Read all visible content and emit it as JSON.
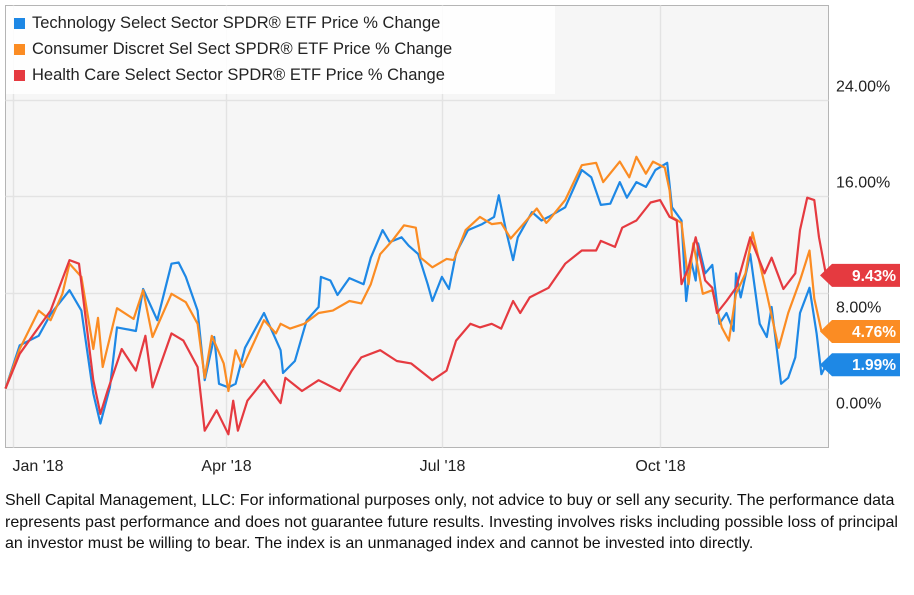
{
  "chart_data": {
    "type": "line",
    "title": "",
    "xlabel": "",
    "ylabel": "",
    "xlim": [
      "2017-12-29",
      "2018-12-11"
    ],
    "ylim": [
      -4.9,
      31.9
    ],
    "grid": true,
    "legend_position": "top-left",
    "y_axis_side": "right",
    "x_ticks": [
      {
        "date": "2018-01-01",
        "label": "Jan '18"
      },
      {
        "date": "2018-04-01",
        "label": "Apr '18"
      },
      {
        "date": "2018-07-01",
        "label": "Jul '18"
      },
      {
        "date": "2018-10-01",
        "label": "Oct '18"
      }
    ],
    "y_ticks": [
      {
        "value": 24,
        "label": "24.00%"
      },
      {
        "value": 16,
        "label": "16.00%"
      },
      {
        "value": 8,
        "label": "8.00%"
      },
      {
        "value": 0,
        "label": "0.00%"
      }
    ],
    "series": [
      {
        "name": "Technology Select Sector SPDR® ETF Price % Change",
        "color": "#1e88e5",
        "last_label": "1.99%",
        "last_value": 1.99,
        "points": [
          [
            "2017-12-29",
            0
          ],
          [
            "2018-01-04",
            3.6
          ],
          [
            "2018-01-12",
            4.4
          ],
          [
            "2018-01-17",
            6.2
          ],
          [
            "2018-01-25",
            8.2
          ],
          [
            "2018-01-30",
            6.5
          ],
          [
            "2018-02-04",
            -0.4
          ],
          [
            "2018-02-07",
            -2.9
          ],
          [
            "2018-02-11",
            0.1
          ],
          [
            "2018-02-14",
            5.1
          ],
          [
            "2018-02-22",
            4.8
          ],
          [
            "2018-02-25",
            8.3
          ],
          [
            "2018-03-03",
            5.7
          ],
          [
            "2018-03-09",
            10.4
          ],
          [
            "2018-03-12",
            10.5
          ],
          [
            "2018-03-15",
            9.3
          ],
          [
            "2018-03-20",
            6.5
          ],
          [
            "2018-03-23",
            0.7
          ],
          [
            "2018-03-27",
            4.3
          ],
          [
            "2018-03-29",
            0.4
          ],
          [
            "2018-04-02",
            0.1
          ],
          [
            "2018-04-05",
            0.4
          ],
          [
            "2018-04-09",
            3.4
          ],
          [
            "2018-04-17",
            6.3
          ],
          [
            "2018-04-24",
            3.2
          ],
          [
            "2018-04-25",
            1.3
          ],
          [
            "2018-04-30",
            2.3
          ],
          [
            "2018-05-05",
            5.7
          ],
          [
            "2018-05-10",
            6.8
          ],
          [
            "2018-05-11",
            9.3
          ],
          [
            "2018-05-15",
            9.0
          ],
          [
            "2018-05-18",
            7.8
          ],
          [
            "2018-05-23",
            9.2
          ],
          [
            "2018-05-29",
            8.7
          ],
          [
            "2018-06-01",
            10.9
          ],
          [
            "2018-06-06",
            13.2
          ],
          [
            "2018-06-09",
            12.2
          ],
          [
            "2018-06-14",
            12.6
          ],
          [
            "2018-06-17",
            11.9
          ],
          [
            "2018-06-21",
            11.2
          ],
          [
            "2018-06-25",
            8.7
          ],
          [
            "2018-06-27",
            7.3
          ],
          [
            "2018-07-01",
            9.3
          ],
          [
            "2018-07-04",
            8.3
          ],
          [
            "2018-07-07",
            11.3
          ],
          [
            "2018-07-12",
            13.2
          ],
          [
            "2018-07-18",
            13.7
          ],
          [
            "2018-07-23",
            14.3
          ],
          [
            "2018-07-25",
            16.1
          ],
          [
            "2018-07-28",
            13.2
          ],
          [
            "2018-07-31",
            10.7
          ],
          [
            "2018-08-02",
            12.6
          ],
          [
            "2018-08-08",
            14.7
          ],
          [
            "2018-08-12",
            14.0
          ],
          [
            "2018-08-15",
            14.3
          ],
          [
            "2018-08-22",
            15.1
          ],
          [
            "2018-08-29",
            18.2
          ],
          [
            "2018-09-02",
            17.6
          ],
          [
            "2018-09-06",
            15.3
          ],
          [
            "2018-09-10",
            15.4
          ],
          [
            "2018-09-14",
            17.2
          ],
          [
            "2018-09-17",
            15.9
          ],
          [
            "2018-09-21",
            17.2
          ],
          [
            "2018-09-25",
            16.8
          ],
          [
            "2018-09-29",
            18.2
          ],
          [
            "2018-10-04",
            18.8
          ],
          [
            "2018-10-06",
            15.1
          ],
          [
            "2018-10-10",
            14.0
          ],
          [
            "2018-10-12",
            7.3
          ],
          [
            "2018-10-14",
            10.7
          ],
          [
            "2018-10-16",
            9.0
          ],
          [
            "2018-10-17",
            12.1
          ],
          [
            "2018-10-20",
            9.6
          ],
          [
            "2018-10-23",
            10.3
          ],
          [
            "2018-10-26",
            5.4
          ],
          [
            "2018-10-29",
            6.3
          ],
          [
            "2018-11-01",
            4.8
          ],
          [
            "2018-11-02",
            9.6
          ],
          [
            "2018-11-04",
            7.6
          ],
          [
            "2018-11-08",
            11.2
          ],
          [
            "2018-11-12",
            5.4
          ],
          [
            "2018-11-15",
            4.3
          ],
          [
            "2018-11-17",
            6.8
          ],
          [
            "2018-11-21",
            0.4
          ],
          [
            "2018-11-24",
            0.9
          ],
          [
            "2018-11-27",
            2.6
          ],
          [
            "2018-11-29",
            6.3
          ],
          [
            "2018-12-03",
            8.4
          ],
          [
            "2018-12-06",
            4.6
          ],
          [
            "2018-12-08",
            1.2
          ],
          [
            "2018-12-10",
            1.99
          ]
        ]
      },
      {
        "name": "Consumer Discret Sel Sect SPDR® ETF Price % Change",
        "color": "#fb8c23",
        "last_label": "4.76%",
        "last_value": 4.76,
        "points": [
          [
            "2017-12-29",
            0
          ],
          [
            "2018-01-04",
            3.3
          ],
          [
            "2018-01-12",
            6.5
          ],
          [
            "2018-01-17",
            5.7
          ],
          [
            "2018-01-22",
            7.9
          ],
          [
            "2018-01-25",
            10.4
          ],
          [
            "2018-01-30",
            9.3
          ],
          [
            "2018-02-04",
            3.3
          ],
          [
            "2018-02-06",
            5.9
          ],
          [
            "2018-02-08",
            1.8
          ],
          [
            "2018-02-14",
            6.7
          ],
          [
            "2018-02-21",
            5.8
          ],
          [
            "2018-02-25",
            8.2
          ],
          [
            "2018-03-01",
            4.3
          ],
          [
            "2018-03-09",
            7.9
          ],
          [
            "2018-03-15",
            7.2
          ],
          [
            "2018-03-20",
            5.4
          ],
          [
            "2018-03-23",
            0.9
          ],
          [
            "2018-03-26",
            4.4
          ],
          [
            "2018-03-31",
            2.1
          ],
          [
            "2018-04-02",
            -0.2
          ],
          [
            "2018-04-05",
            3.2
          ],
          [
            "2018-04-08",
            1.8
          ],
          [
            "2018-04-17",
            5.7
          ],
          [
            "2018-04-22",
            4.6
          ],
          [
            "2018-04-24",
            5.4
          ],
          [
            "2018-04-28",
            5.0
          ],
          [
            "2018-05-04",
            5.4
          ],
          [
            "2018-05-10",
            6.3
          ],
          [
            "2018-05-16",
            6.5
          ],
          [
            "2018-05-23",
            7.3
          ],
          [
            "2018-05-28",
            7.1
          ],
          [
            "2018-06-01",
            8.7
          ],
          [
            "2018-06-05",
            11.2
          ],
          [
            "2018-06-10",
            12.3
          ],
          [
            "2018-06-15",
            13.6
          ],
          [
            "2018-06-20",
            13.4
          ],
          [
            "2018-06-22",
            10.9
          ],
          [
            "2018-06-27",
            10.1
          ],
          [
            "2018-07-03",
            10.8
          ],
          [
            "2018-07-06",
            10.7
          ],
          [
            "2018-07-11",
            13.2
          ],
          [
            "2018-07-17",
            14.3
          ],
          [
            "2018-07-22",
            13.7
          ],
          [
            "2018-07-26",
            13.8
          ],
          [
            "2018-07-30",
            12.5
          ],
          [
            "2018-08-03",
            13.4
          ],
          [
            "2018-08-10",
            15.0
          ],
          [
            "2018-08-14",
            13.8
          ],
          [
            "2018-08-15",
            14.0
          ],
          [
            "2018-08-22",
            15.7
          ],
          [
            "2018-08-29",
            18.6
          ],
          [
            "2018-09-04",
            18.8
          ],
          [
            "2018-09-07",
            17.2
          ],
          [
            "2018-09-14",
            18.9
          ],
          [
            "2018-09-18",
            17.6
          ],
          [
            "2018-09-21",
            19.3
          ],
          [
            "2018-09-25",
            17.9
          ],
          [
            "2018-09-28",
            18.9
          ],
          [
            "2018-10-03",
            18.4
          ],
          [
            "2018-10-05",
            16.5
          ],
          [
            "2018-10-06",
            14.3
          ],
          [
            "2018-10-10",
            13.8
          ],
          [
            "2018-10-13",
            8.7
          ],
          [
            "2018-10-15",
            12.1
          ],
          [
            "2018-10-19",
            7.9
          ],
          [
            "2018-10-23",
            8.2
          ],
          [
            "2018-10-27",
            5.1
          ],
          [
            "2018-10-30",
            4.0
          ],
          [
            "2018-11-02",
            7.9
          ],
          [
            "2018-11-06",
            9.6
          ],
          [
            "2018-11-09",
            13.0
          ],
          [
            "2018-11-15",
            7.9
          ],
          [
            "2018-11-20",
            3.4
          ],
          [
            "2018-11-24",
            6.3
          ],
          [
            "2018-11-29",
            9.0
          ],
          [
            "2018-12-03",
            11.5
          ],
          [
            "2018-12-05",
            7.5
          ],
          [
            "2018-12-08",
            4.8
          ],
          [
            "2018-12-10",
            4.76
          ]
        ]
      },
      {
        "name": "Health Care Select Sector SPDR® ETF Price % Change",
        "color": "#e53a40",
        "last_label": "9.43%",
        "last_value": 9.43,
        "points": [
          [
            "2017-12-29",
            0
          ],
          [
            "2018-01-04",
            2.9
          ],
          [
            "2018-01-17",
            6.5
          ],
          [
            "2018-01-25",
            10.7
          ],
          [
            "2018-01-29",
            10.4
          ],
          [
            "2018-02-04",
            0.7
          ],
          [
            "2018-02-07",
            -2.1
          ],
          [
            "2018-02-10",
            -0.2
          ],
          [
            "2018-02-16",
            3.3
          ],
          [
            "2018-02-22",
            1.5
          ],
          [
            "2018-02-26",
            4.4
          ],
          [
            "2018-03-01",
            0.1
          ],
          [
            "2018-03-09",
            4.6
          ],
          [
            "2018-03-14",
            4.0
          ],
          [
            "2018-03-20",
            1.8
          ],
          [
            "2018-03-23",
            -3.5
          ],
          [
            "2018-03-28",
            -1.8
          ],
          [
            "2018-04-02",
            -3.8
          ],
          [
            "2018-04-04",
            -1.0
          ],
          [
            "2018-04-06",
            -3.5
          ],
          [
            "2018-04-10",
            -1.0
          ],
          [
            "2018-04-17",
            0.7
          ],
          [
            "2018-04-21",
            -0.4
          ],
          [
            "2018-04-24",
            -1.2
          ],
          [
            "2018-04-26",
            0.9
          ],
          [
            "2018-05-03",
            -0.2
          ],
          [
            "2018-05-10",
            0.7
          ],
          [
            "2018-05-19",
            -0.2
          ],
          [
            "2018-05-24",
            1.5
          ],
          [
            "2018-05-28",
            2.6
          ],
          [
            "2018-06-05",
            3.2
          ],
          [
            "2018-06-12",
            2.3
          ],
          [
            "2018-06-18",
            2.1
          ],
          [
            "2018-06-27",
            0.7
          ],
          [
            "2018-07-03",
            1.5
          ],
          [
            "2018-07-07",
            4.0
          ],
          [
            "2018-07-13",
            5.4
          ],
          [
            "2018-07-17",
            5.1
          ],
          [
            "2018-07-22",
            5.4
          ],
          [
            "2018-07-26",
            5.0
          ],
          [
            "2018-07-31",
            7.3
          ],
          [
            "2018-08-03",
            6.3
          ],
          [
            "2018-08-07",
            7.6
          ],
          [
            "2018-08-15",
            8.4
          ],
          [
            "2018-08-22",
            10.4
          ],
          [
            "2018-08-29",
            11.5
          ],
          [
            "2018-09-04",
            11.5
          ],
          [
            "2018-09-06",
            12.3
          ],
          [
            "2018-09-12",
            11.8
          ],
          [
            "2018-09-15",
            13.4
          ],
          [
            "2018-09-21",
            14.0
          ],
          [
            "2018-09-27",
            15.5
          ],
          [
            "2018-10-01",
            15.7
          ],
          [
            "2018-10-05",
            14.3
          ],
          [
            "2018-10-08",
            14.0
          ],
          [
            "2018-10-10",
            8.7
          ],
          [
            "2018-10-13",
            10.1
          ],
          [
            "2018-10-16",
            12.6
          ],
          [
            "2018-10-20",
            9.0
          ],
          [
            "2018-10-23",
            8.4
          ],
          [
            "2018-10-25",
            6.3
          ],
          [
            "2018-10-29",
            7.3
          ],
          [
            "2018-11-02",
            8.4
          ],
          [
            "2018-11-08",
            12.6
          ],
          [
            "2018-11-14",
            9.6
          ],
          [
            "2018-11-17",
            10.9
          ],
          [
            "2018-11-22",
            8.3
          ],
          [
            "2018-11-27",
            9.6
          ],
          [
            "2018-11-29",
            13.2
          ],
          [
            "2018-12-02",
            15.9
          ],
          [
            "2018-12-05",
            15.7
          ],
          [
            "2018-12-07",
            12.6
          ],
          [
            "2018-12-10",
            9.43
          ]
        ]
      }
    ]
  },
  "footer": {
    "disclaimer": "Shell Capital Management, LLC: For informational purposes only, not advice to buy or sell any security. The performance data represents past performance and does not guarantee future results. Investing involves risks including possible loss of principal an investor must be willing to bear. The index is an unmanaged index and cannot be invested into directly."
  }
}
